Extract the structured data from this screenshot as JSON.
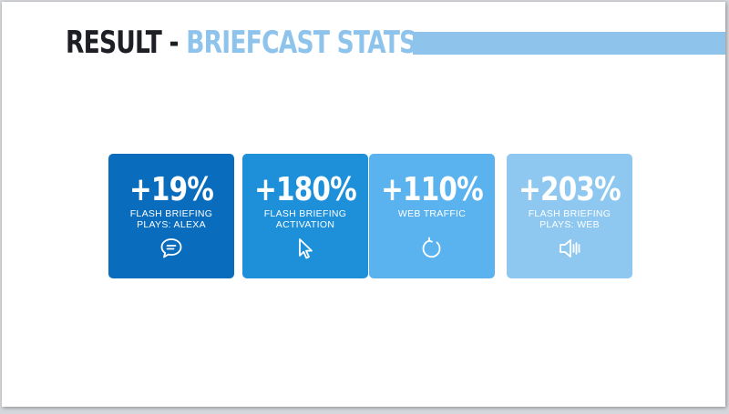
{
  "title": {
    "prefix": "RESULT - ",
    "highlight": "BRIEFCAST STATS"
  },
  "colors": {
    "title_dark": "#1d1f24",
    "accent": "#8ec3ec",
    "card_1": "#0a6cbd",
    "card_2": "#1e8fd9",
    "card_3": "#5ab3ee",
    "card_4": "#8ec8f0"
  },
  "stats": [
    {
      "value": "+19%",
      "label": "FLASH BRIEFING\nPLAYS: ALEXA",
      "icon": "chat-bubble-icon"
    },
    {
      "value": "+180%",
      "label": "FLASH BRIEFING\nACTIVATION",
      "icon": "cursor-arrow-icon"
    },
    {
      "value": "+110%",
      "label": "WEB TRAFFIC",
      "icon": "refresh-icon"
    },
    {
      "value": "+203%",
      "label": "FLASH BRIEFING\nPLAYS: WEB",
      "icon": "speaker-icon"
    }
  ]
}
